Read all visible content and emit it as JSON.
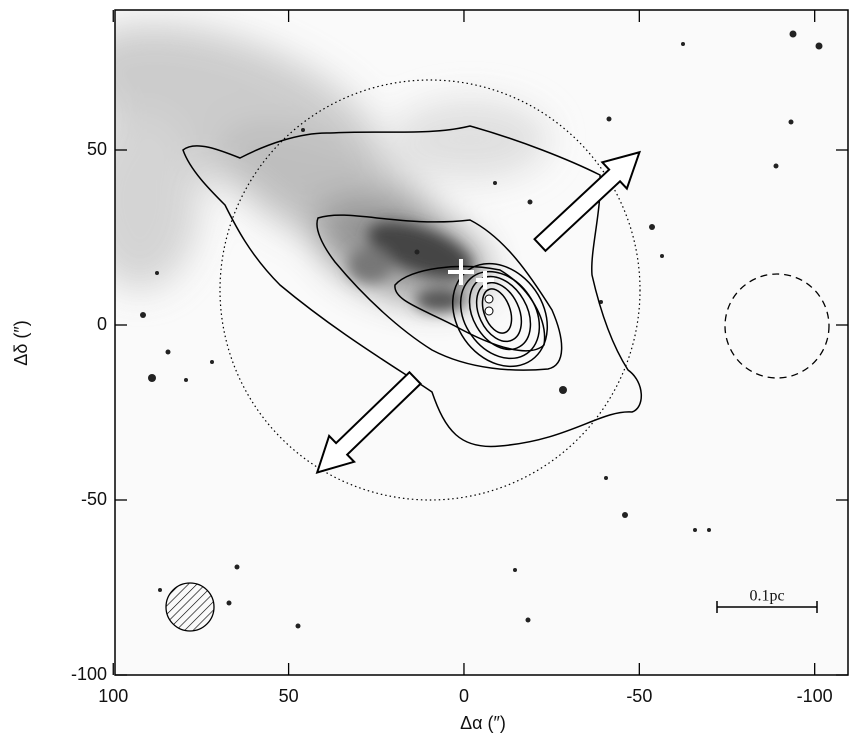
{
  "chart_data": {
    "type": "image",
    "xlabel": "Δα (″)",
    "ylabel": "Δδ (″)",
    "xlim": [
      99.5,
      -109.5
    ],
    "ylim": [
      -100,
      90
    ],
    "xticks": [
      100,
      50,
      0,
      -50,
      -100
    ],
    "yticks": [
      50,
      0,
      -50,
      -100
    ],
    "annotations": [
      "0.1pc"
    ]
  }
}
